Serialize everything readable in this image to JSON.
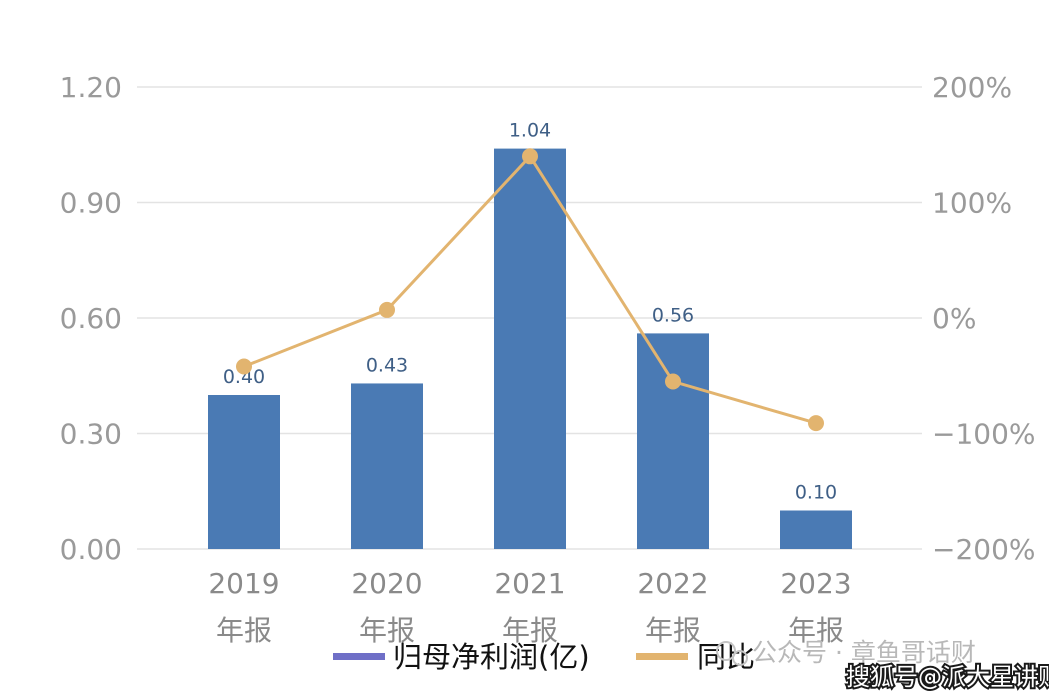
{
  "chart_data": {
    "type": "bar",
    "categories": [
      [
        "2019",
        "年报"
      ],
      [
        "2020",
        "年报"
      ],
      [
        "2021",
        "年报"
      ],
      [
        "2022",
        "年报"
      ],
      [
        "2023",
        "年报"
      ]
    ],
    "series": [
      {
        "name": "归母净利润(亿)",
        "type": "bar",
        "axis": "left",
        "values": [
          0.4,
          0.43,
          1.04,
          0.56,
          0.1
        ],
        "labels": [
          "0.40",
          "0.43",
          "1.04",
          "0.56",
          "0.10"
        ]
      },
      {
        "name": "同比",
        "type": "line",
        "axis": "right",
        "values": [
          -42,
          7,
          140,
          -55,
          -91
        ]
      }
    ],
    "ylim": [
      0,
      1.2
    ],
    "yticks": [
      "0.00",
      "0.30",
      "0.60",
      "0.90",
      "1.20"
    ],
    "ylim_right": [
      -200,
      200
    ],
    "yticks_right": [
      "-200%",
      "-100%",
      "0%",
      "100%",
      "200%"
    ],
    "grid": true,
    "legend_position": "bottom",
    "colors": {
      "bar": "#4a7ab4",
      "line": "#e2b46f",
      "legend_bar": "#6f6fc7",
      "grid": "#e3e3e3",
      "tick": "#9a9a9a"
    }
  },
  "watermark": {
    "text": "公众号 · 章鱼哥话财",
    "text2": "搜狐号@派大星讲财"
  }
}
